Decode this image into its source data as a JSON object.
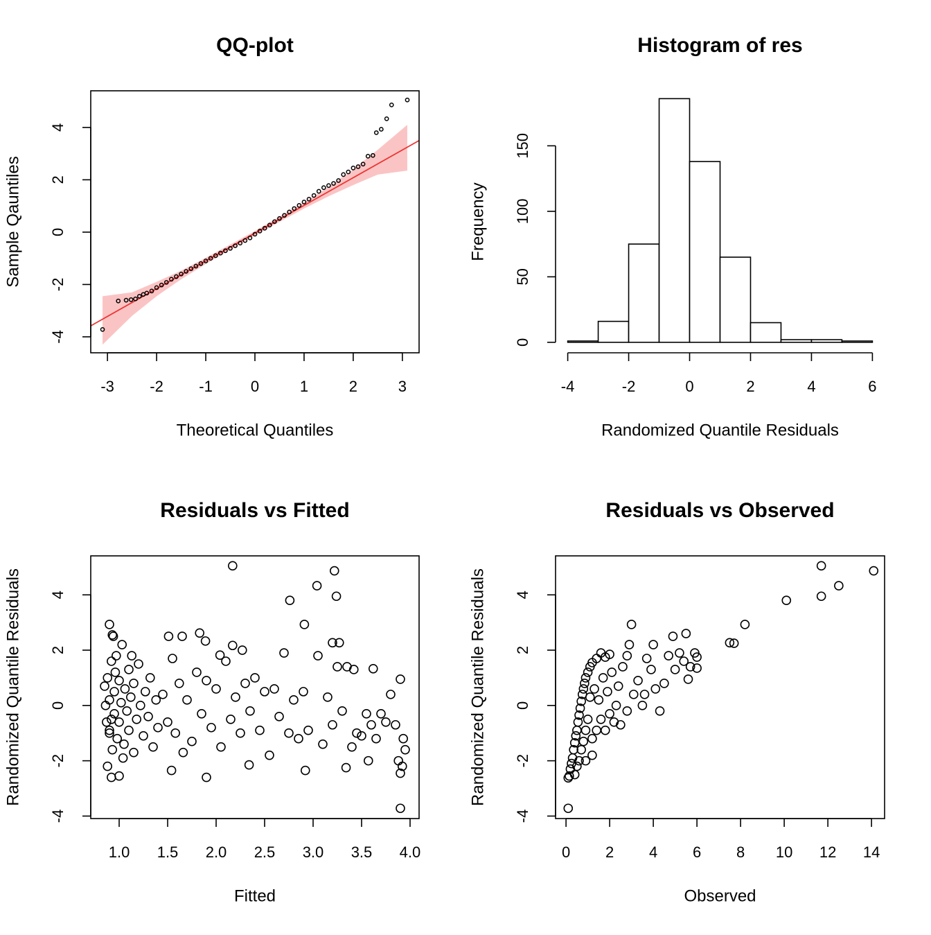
{
  "chart_data": [
    {
      "type": "qq",
      "title": "QQ-plot",
      "xlabel": "Theoretical Quantiles",
      "ylabel": "Sample Qauntiles",
      "xlim": [
        -3.34,
        3.34
      ],
      "ylim": [
        -4.61,
        5.4
      ],
      "xticks": [
        -3,
        -2,
        -1,
        0,
        1,
        2,
        3
      ],
      "yticks": [
        -4,
        -2,
        0,
        2,
        4
      ],
      "box": true,
      "point_color": "#000000",
      "line_color": "#ee3333",
      "band_color": "#fbc4c4",
      "x": [
        -3.1,
        -2.78,
        -2.62,
        -2.52,
        -2.43,
        -2.35,
        -2.27,
        -2.2,
        -2.1,
        -2.0,
        -1.9,
        -1.8,
        -1.7,
        -1.6,
        -1.5,
        -1.4,
        -1.3,
        -1.2,
        -1.1,
        -1.0,
        -0.9,
        -0.8,
        -0.7,
        -0.6,
        -0.5,
        -0.4,
        -0.3,
        -0.2,
        -0.1,
        0.0,
        0.1,
        0.2,
        0.3,
        0.4,
        0.5,
        0.6,
        0.7,
        0.8,
        0.9,
        1.0,
        1.1,
        1.2,
        1.3,
        1.4,
        1.5,
        1.6,
        1.7,
        1.8,
        1.9,
        2.0,
        2.1,
        2.2,
        2.3,
        2.4,
        2.47,
        2.57,
        2.68,
        2.78,
        3.1
      ],
      "y": [
        -3.72,
        -2.63,
        -2.6,
        -2.58,
        -2.55,
        -2.45,
        -2.38,
        -2.33,
        -2.25,
        -2.12,
        -2.02,
        -1.92,
        -1.8,
        -1.7,
        -1.6,
        -1.5,
        -1.4,
        -1.3,
        -1.2,
        -1.1,
        -1.0,
        -0.9,
        -0.8,
        -0.71,
        -0.62,
        -0.52,
        -0.42,
        -0.32,
        -0.22,
        -0.08,
        0.04,
        0.15,
        0.27,
        0.4,
        0.52,
        0.64,
        0.77,
        0.9,
        1.02,
        1.15,
        1.26,
        1.4,
        1.56,
        1.7,
        1.78,
        1.86,
        1.97,
        2.2,
        2.3,
        2.45,
        2.5,
        2.6,
        2.9,
        2.93,
        3.8,
        3.93,
        4.33,
        4.86,
        5.05
      ],
      "ref_line": {
        "x": [
          -3.34,
          3.34
        ],
        "y": [
          -3.58,
          3.5
        ]
      },
      "band": {
        "x": [
          -3.1,
          -2.5,
          -2.0,
          -1.5,
          -1.0,
          0.0,
          1.0,
          1.5,
          2.0,
          2.5,
          3.1
        ],
        "lower": [
          -4.3,
          -3.2,
          -2.45,
          -1.8,
          -1.22,
          -0.12,
          0.9,
          1.37,
          1.8,
          2.2,
          2.35
        ],
        "upper": [
          -2.45,
          -2.3,
          -1.9,
          -1.47,
          -0.98,
          0.04,
          1.14,
          1.73,
          2.4,
          3.15,
          4.1
        ]
      }
    },
    {
      "type": "histogram",
      "title": "Histogram of res",
      "xlabel": "Randomized Quantile Residuals",
      "ylabel": "Frequency",
      "xlim": [
        -4.4,
        6.4
      ],
      "ylim": [
        -8,
        192
      ],
      "xticks": [
        -4,
        -2,
        0,
        2,
        4,
        6
      ],
      "yticks": [
        0,
        50,
        100,
        150
      ],
      "box": false,
      "color": "#ffffff",
      "edge_color": "#000000",
      "bins": [
        -4,
        -3,
        -2,
        -1,
        0,
        1,
        2,
        3,
        4,
        5,
        6
      ],
      "counts": [
        1,
        16,
        75,
        186,
        138,
        65,
        15,
        2,
        2,
        1
      ]
    },
    {
      "type": "scatter",
      "title": "Residuals vs Fitted",
      "xlabel": "Fitted",
      "ylabel": "Randomized Quantile Residuals",
      "xlim": [
        0.707,
        4.093
      ],
      "ylim": [
        -4.09,
        5.41
      ],
      "xticks": [
        {
          "value": 1,
          "label": "1.0"
        },
        1.5,
        {
          "value": 2,
          "label": "2.0"
        },
        2.5,
        {
          "value": 3,
          "label": "3.0"
        },
        3.5,
        {
          "value": 4,
          "label": "4.0"
        }
      ],
      "yticks": [
        -4,
        -2,
        0,
        2,
        4
      ],
      "box": true,
      "point_color": "#000000",
      "x": [
        2.17,
        3.22,
        3.04,
        3.24,
        2.76,
        2.91,
        0.9,
        0.93,
        1.51,
        1.65,
        1.83,
        1.89,
        3.2,
        3.27,
        3.9,
        3.9,
        3.92,
        3.93,
        3.95,
        3.88,
        3.9,
        0.92,
        1.0,
        1.9,
        2.92,
        1.54,
        3.34,
        2.34,
        3.57,
        3.62,
        3.42,
        2.04,
        2.17,
        2.27,
        0.85,
        0.87,
        0.88,
        0.9,
        0.9,
        0.92,
        0.93,
        0.95,
        0.95,
        0.97,
        0.98,
        1.0,
        1.0,
        1.02,
        1.03,
        1.05,
        1.06,
        1.08,
        1.1,
        1.1,
        1.12,
        1.15,
        1.15,
        1.18,
        1.2,
        1.22,
        1.25,
        1.27,
        1.3,
        1.32,
        1.35,
        1.38,
        1.4,
        0.88,
        0.9,
        0.96,
        1.04,
        0.86,
        0.92,
        1.13,
        0.94,
        1.45,
        1.5,
        1.55,
        1.58,
        1.62,
        1.66,
        1.7,
        1.75,
        1.8,
        1.85,
        1.9,
        1.95,
        2.0,
        2.05,
        2.1,
        2.15,
        2.2,
        2.25,
        2.3,
        2.35,
        2.4,
        2.45,
        2.5,
        2.55,
        2.6,
        2.65,
        2.7,
        2.75,
        2.8,
        2.85,
        2.9,
        2.95,
        3.05,
        3.1,
        3.15,
        3.2,
        3.25,
        3.3,
        3.35,
        3.4,
        3.45,
        3.5,
        3.55,
        3.6,
        3.65,
        3.7,
        3.75,
        3.8,
        3.85
      ],
      "y": [
        5.05,
        4.87,
        4.33,
        3.95,
        3.8,
        2.93,
        2.93,
        2.55,
        2.5,
        2.5,
        2.62,
        2.33,
        2.27,
        2.27,
        0.95,
        -3.72,
        -2.2,
        -1.2,
        -1.6,
        -2.0,
        -2.45,
        -2.6,
        -2.55,
        -2.6,
        -2.35,
        -2.35,
        -2.25,
        -2.15,
        -2.0,
        1.33,
        1.3,
        1.82,
        2.17,
        2.0,
        0.7,
        -0.6,
        1.0,
        0.2,
        -0.9,
        1.6,
        -1.6,
        0.5,
        -0.3,
        1.8,
        -1.2,
        0.9,
        -0.6,
        0.1,
        2.2,
        -1.4,
        0.6,
        -0.2,
        1.3,
        -0.9,
        0.3,
        -1.7,
        0.8,
        -0.5,
        1.5,
        0.0,
        -1.1,
        0.5,
        -0.4,
        1.0,
        -1.5,
        0.2,
        -0.8,
        -2.2,
        -1.0,
        1.2,
        -1.9,
        0.0,
        -0.5,
        1.8,
        2.5,
        0.4,
        -0.6,
        1.7,
        -1.0,
        0.8,
        -1.7,
        0.2,
        -1.3,
        1.2,
        -0.3,
        0.9,
        -0.8,
        0.6,
        -1.5,
        1.6,
        -0.5,
        0.3,
        -1.0,
        0.8,
        -0.2,
        1.0,
        -0.9,
        0.5,
        -1.8,
        0.6,
        -0.4,
        1.9,
        -1.0,
        0.2,
        -1.2,
        0.5,
        -0.9,
        1.8,
        -1.4,
        0.3,
        -0.7,
        1.4,
        -0.2,
        1.4,
        -1.5,
        -1.0,
        -1.1,
        -0.3,
        -0.7,
        -1.2,
        -0.3,
        -0.6,
        0.4,
        -0.7
      ]
    },
    {
      "type": "scatter",
      "title": "Residuals vs Observed",
      "xlabel": "Observed",
      "ylabel": "Randomized Quantile Residuals",
      "xlim": [
        -0.48,
        14.6
      ],
      "ylim": [
        -4.09,
        5.41
      ],
      "xticks": [
        0,
        2,
        4,
        6,
        8,
        10,
        12,
        14
      ],
      "yticks": [
        -4,
        -2,
        0,
        2,
        4
      ],
      "box": true,
      "point_color": "#000000",
      "x": [
        11.7,
        14.1,
        12.5,
        11.7,
        10.1,
        8.2,
        7.5,
        7.7,
        0.1,
        5.6,
        6.0,
        5.5,
        3.0,
        0.1,
        0.15,
        0.2,
        0.25,
        0.3,
        0.35,
        0.4,
        0.45,
        0.5,
        0.55,
        0.6,
        0.65,
        0.7,
        0.75,
        0.8,
        0.85,
        0.9,
        1.0,
        1.1,
        1.2,
        1.4,
        1.6,
        1.8,
        2.0,
        0.5,
        0.6,
        0.7,
        0.8,
        0.9,
        1.0,
        1.2,
        1.4,
        1.6,
        1.8,
        2.0,
        2.2,
        2.5,
        2.8,
        1.1,
        1.3,
        1.5,
        1.7,
        1.9,
        2.1,
        2.3,
        2.6,
        2.8,
        2.9,
        3.1,
        3.3,
        3.5,
        3.7,
        3.9,
        4.1,
        4.3,
        4.5,
        4.7,
        4.9,
        5.0,
        5.2,
        5.4,
        5.7,
        5.9,
        6.0,
        3.6,
        4.0,
        2.4,
        1.2,
        0.9,
        0.4
      ],
      "y": [
        5.05,
        4.87,
        4.33,
        3.95,
        3.8,
        2.93,
        2.27,
        2.25,
        -3.72,
        0.95,
        1.75,
        2.6,
        2.93,
        -2.62,
        -2.55,
        -2.3,
        -2.1,
        -1.9,
        -1.6,
        -1.35,
        -1.1,
        -0.9,
        -0.6,
        -0.35,
        -0.1,
        0.15,
        0.4,
        0.6,
        0.8,
        1.0,
        1.2,
        1.4,
        1.55,
        1.7,
        1.9,
        1.75,
        1.85,
        -2.2,
        -2.0,
        -1.6,
        -1.3,
        -0.9,
        -0.5,
        -1.2,
        -0.9,
        -0.5,
        -0.9,
        -0.3,
        -0.6,
        -0.7,
        -0.2,
        0.3,
        0.6,
        0.2,
        1.0,
        0.5,
        1.2,
        0.0,
        1.4,
        1.8,
        2.2,
        0.4,
        0.9,
        0.0,
        1.7,
        1.3,
        0.6,
        -0.2,
        0.8,
        1.8,
        2.5,
        1.3,
        1.9,
        1.6,
        1.4,
        1.9,
        1.35,
        0.4,
        2.2,
        0.7,
        -1.8,
        -2.0,
        -2.5
      ]
    }
  ]
}
